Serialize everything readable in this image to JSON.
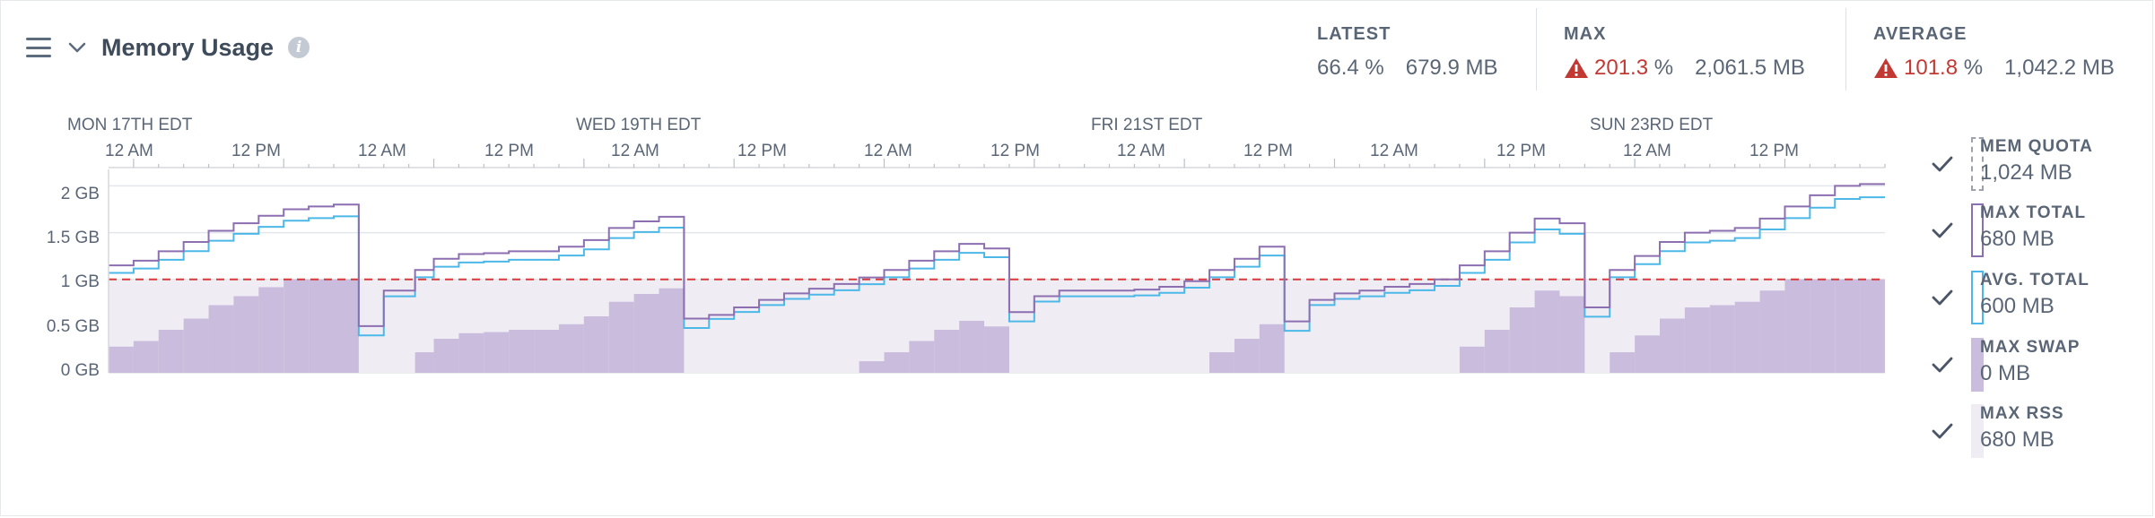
{
  "header": {
    "title": "Memory Usage",
    "info_icon": "info-icon",
    "menu_icon": "hamburger-icon",
    "collapse_icon": "chevron-down-icon"
  },
  "stats": {
    "latest": {
      "label": "LATEST",
      "pct": "66.4",
      "pct_unit": "%",
      "mb": "679.9 MB",
      "alert": false
    },
    "max": {
      "label": "MAX",
      "pct": "201.3",
      "pct_unit": "%",
      "mb": "2,061.5 MB",
      "alert": true
    },
    "average": {
      "label": "AVERAGE",
      "pct": "101.8",
      "pct_unit": "%",
      "mb": "1,042.2 MB",
      "alert": true
    }
  },
  "colors": {
    "max_total": "#8c6fb0",
    "avg_total": "#4cb8e8",
    "max_swap": "#c9bcdc",
    "max_rss": "#efecf4",
    "quota": "#d63a3a",
    "alert": "#c23934"
  },
  "chart_data": {
    "type": "area",
    "x_day_labels": [
      "MON 17TH EDT",
      "WED 19TH EDT",
      "FRI 21ST EDT",
      "SUN 23RD EDT"
    ],
    "x_hour_labels": [
      "12 AM",
      "12 PM",
      "12 AM",
      "12 PM",
      "12 AM",
      "12 PM",
      "12 AM",
      "12 PM",
      "12 AM",
      "12 PM",
      "12 AM",
      "12 PM",
      "12 AM",
      "12 PM"
    ],
    "y_tick_labels": [
      "0 GB",
      "0.5 GB",
      "1 GB",
      "1.5 GB",
      "2 GB"
    ],
    "y_unit": "GB",
    "ylim": [
      0,
      2.1
    ],
    "x_range_hours": [
      -2,
      140
    ],
    "grid": true,
    "legend_placement": "right",
    "quota_gb": 1.0,
    "series": [
      {
        "name": "MAX TOTAL",
        "x": [
          -2,
          0,
          2,
          4,
          6,
          8,
          10,
          12,
          14,
          16,
          18,
          20,
          22.5,
          24,
          26,
          28,
          30,
          32,
          34,
          36,
          38,
          40,
          42,
          44,
          46,
          48,
          50,
          52,
          54,
          56,
          58,
          60,
          62,
          64,
          66,
          68,
          70,
          72,
          74,
          76,
          78,
          80,
          82,
          84,
          86,
          88,
          90,
          92,
          94,
          96,
          98,
          100,
          102,
          104,
          106,
          108,
          110,
          112,
          114,
          116,
          118,
          120,
          122,
          124,
          126,
          128,
          130,
          132,
          134,
          136,
          138
        ],
        "values": [
          1.15,
          1.2,
          1.3,
          1.4,
          1.52,
          1.6,
          1.68,
          1.75,
          1.78,
          1.8,
          0.5,
          0.88,
          1.1,
          1.22,
          1.27,
          1.28,
          1.3,
          1.3,
          1.35,
          1.42,
          1.55,
          1.62,
          1.67,
          0.58,
          0.62,
          0.7,
          0.78,
          0.85,
          0.9,
          0.95,
          1.02,
          1.1,
          1.2,
          1.3,
          1.38,
          1.33,
          0.65,
          0.82,
          0.88,
          0.88,
          0.88,
          0.89,
          0.92,
          0.98,
          1.1,
          1.22,
          1.35,
          0.55,
          0.78,
          0.85,
          0.88,
          0.92,
          0.95,
          1.0,
          1.15,
          1.3,
          1.5,
          1.65,
          1.6,
          0.7,
          1.1,
          1.25,
          1.4,
          1.5,
          1.52,
          1.55,
          1.65,
          1.78,
          1.9,
          2.0,
          2.02
        ],
        "color": "#8c6fb0",
        "legend_value": "680 MB"
      }
    ],
    "legend": [
      {
        "name": "MEM QUOTA",
        "value": "1,024 MB",
        "swatch": "dashed"
      },
      {
        "name": "MAX TOTAL",
        "value": "680 MB",
        "swatch": "#8c6fb0"
      },
      {
        "name": "AVG. TOTAL",
        "value": "600 MB",
        "swatch": "#4cb8e8"
      },
      {
        "name": "MAX SWAP",
        "value": "0 MB",
        "swatch": "#c9bcdc"
      },
      {
        "name": "MAX RSS",
        "value": "680 MB",
        "swatch": "#efecf4"
      }
    ]
  }
}
